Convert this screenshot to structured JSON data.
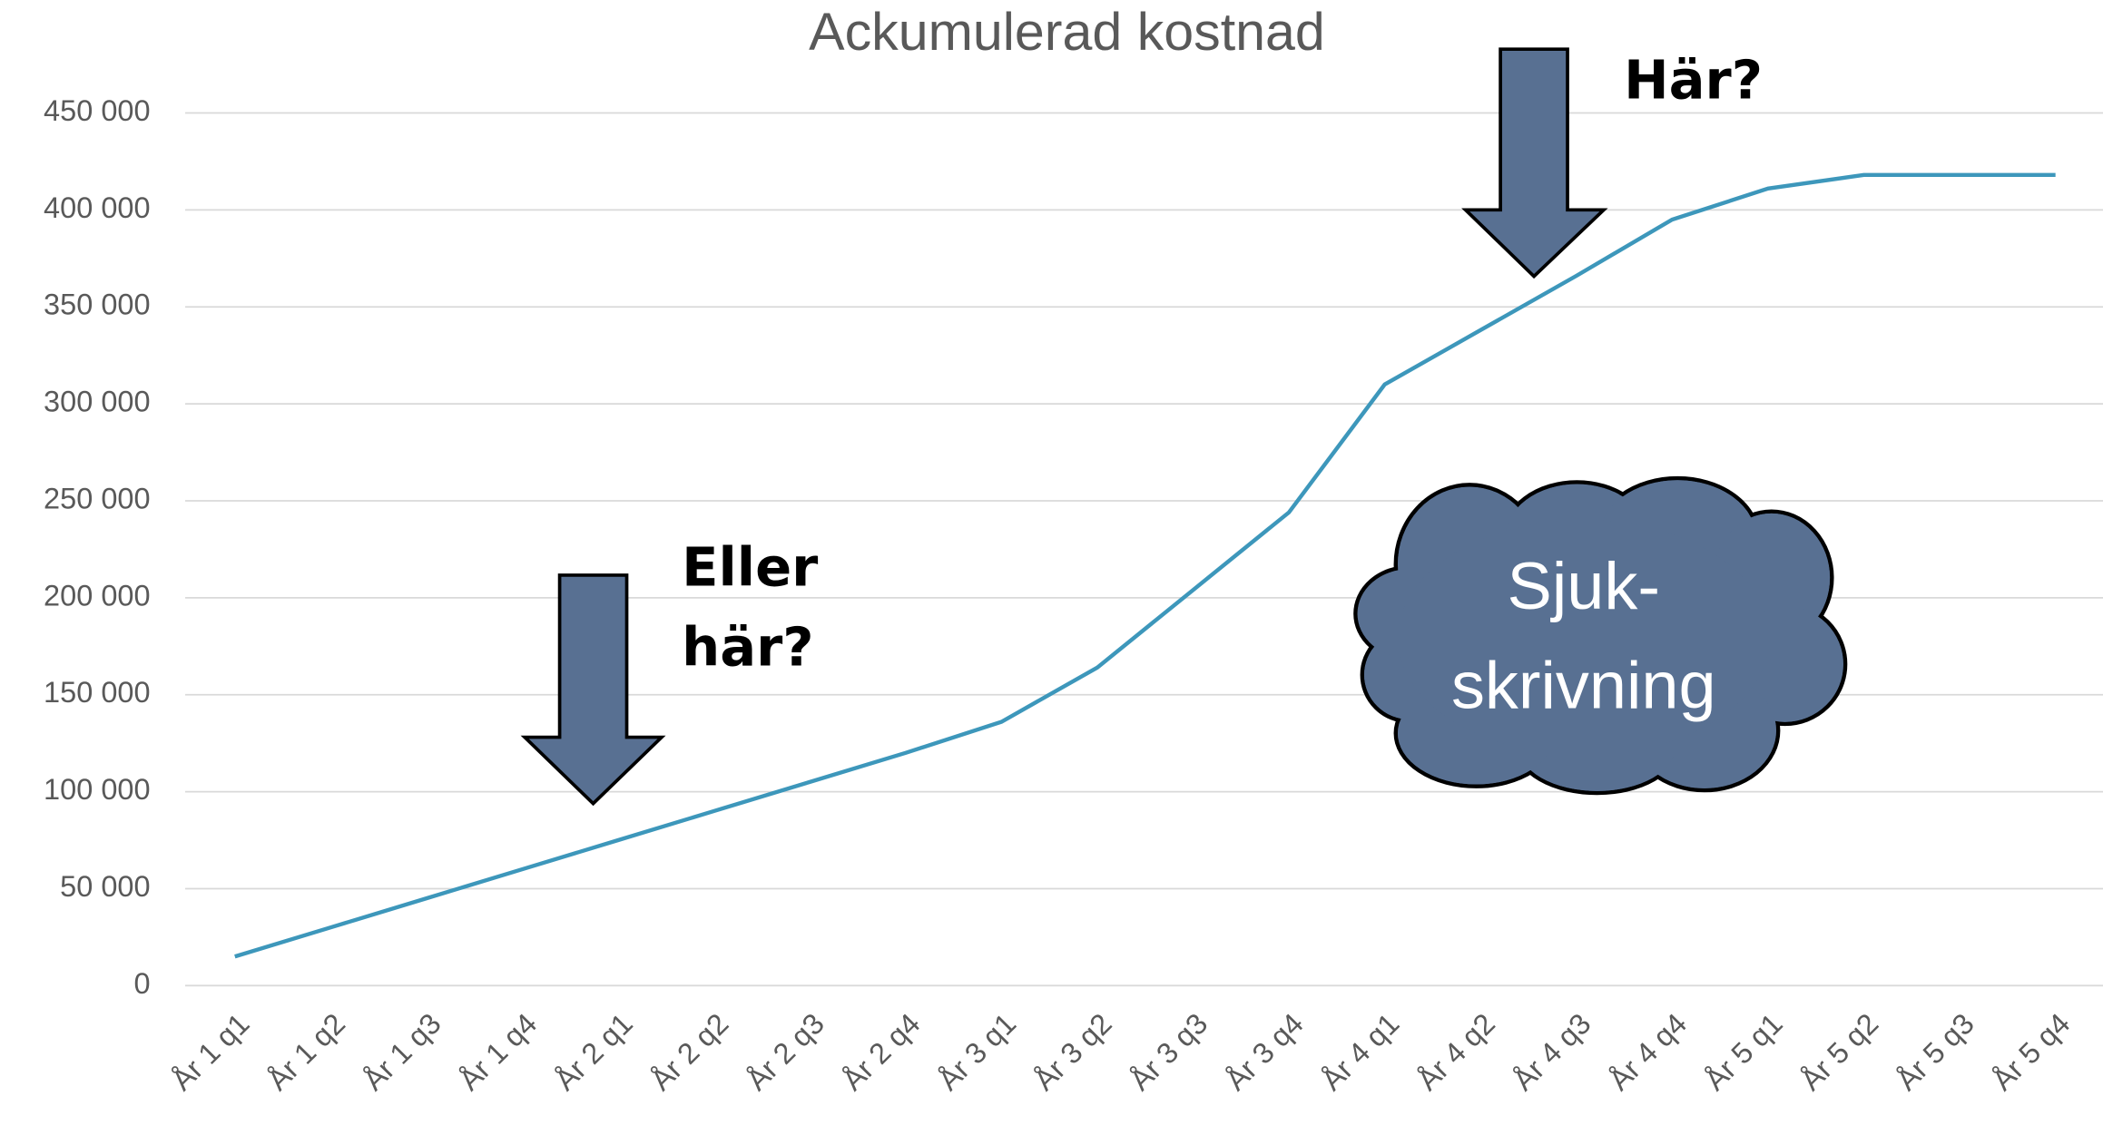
{
  "chart_data": {
    "type": "line",
    "title": "Ackumulerad kostnad",
    "categories": [
      "År 1 q1",
      "År 1 q2",
      "År 1 q3",
      "År 1 q4",
      "År 2 q1",
      "År 2 q2",
      "År 2 q3",
      "År 2 q4",
      "År 3 q1",
      "År 3 q2",
      "År 3 q3",
      "År 3 q4",
      "År 4 q1",
      "År 4 q2",
      "År 4 q3",
      "År 4 q4",
      "År 5 q1",
      "År 5 q2",
      "År 5 q3",
      "År 5 q4"
    ],
    "series": [
      {
        "name": "Ackumulerad kostnad",
        "color": "#3d97bb",
        "values": [
          15000,
          30000,
          45000,
          60000,
          75000,
          90000,
          105000,
          120000,
          136000,
          164000,
          204000,
          244000,
          310000,
          338000,
          366000,
          395000,
          411000,
          418000,
          418000,
          418000
        ]
      }
    ],
    "ylim": [
      0,
      450000
    ],
    "yticks": [
      0,
      {
        "value": 50000,
        "label": "50 000"
      },
      {
        "value": 100000,
        "label": "100 000"
      },
      {
        "value": 150000,
        "label": "150 000"
      },
      {
        "value": 200000,
        "label": "200 000"
      },
      {
        "value": 250000,
        "label": "250 000"
      },
      {
        "value": 300000,
        "label": "300 000"
      },
      {
        "value": 350000,
        "label": "350 000"
      },
      {
        "value": 400000,
        "label": "400 000"
      },
      {
        "value": 450000,
        "label": "450 000"
      }
    ],
    "grid": true,
    "annotations": [
      [
        "Här?"
      ],
      [
        "Eller",
        "här?"
      ],
      [
        "Sjuk-",
        "skrivning"
      ]
    ]
  }
}
